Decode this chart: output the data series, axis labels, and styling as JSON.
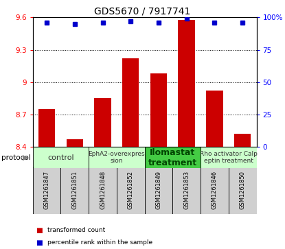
{
  "title": "GDS5670 / 7917741",
  "samples": [
    "GSM1261847",
    "GSM1261851",
    "GSM1261848",
    "GSM1261852",
    "GSM1261849",
    "GSM1261853",
    "GSM1261846",
    "GSM1261850"
  ],
  "bar_values": [
    8.75,
    8.47,
    8.85,
    9.22,
    9.08,
    9.58,
    8.92,
    8.52
  ],
  "percentile_values": [
    96,
    95,
    96,
    97,
    96,
    99,
    96,
    96
  ],
  "ylim_left": [
    8.4,
    9.6
  ],
  "ylim_right": [
    0,
    100
  ],
  "yticks_left": [
    8.4,
    8.7,
    9.0,
    9.3,
    9.6
  ],
  "yticks_right": [
    0,
    25,
    50,
    75,
    100
  ],
  "ytick_labels_left": [
    "8.4",
    "8.7",
    "9",
    "9.3",
    "9.6"
  ],
  "ytick_labels_right": [
    "0",
    "25",
    "50",
    "75",
    "100%"
  ],
  "bar_color": "#cc0000",
  "dot_color": "#0000cc",
  "bar_bottom": 8.4,
  "grid_lines": [
    8.7,
    9.0,
    9.3
  ],
  "protocols": [
    {
      "label": "control",
      "start": 0,
      "end": 2,
      "color": "#ccffcc",
      "text_color": "#333333",
      "bold": false,
      "fontsize": 8
    },
    {
      "label": "EphA2-overexpres\nsion",
      "start": 2,
      "end": 4,
      "color": "#ccffcc",
      "text_color": "#333333",
      "bold": false,
      "fontsize": 6.5
    },
    {
      "label": "Ilomastat\ntreatment",
      "start": 4,
      "end": 6,
      "color": "#44cc44",
      "text_color": "#004400",
      "bold": true,
      "fontsize": 9
    },
    {
      "label": "Rho activator Calp\neptin treatment",
      "start": 6,
      "end": 8,
      "color": "#ccffcc",
      "text_color": "#333333",
      "bold": false,
      "fontsize": 6.5
    }
  ],
  "protocol_label": "protocol",
  "legend_items": [
    {
      "label": "transformed count",
      "color": "#cc0000"
    },
    {
      "label": "percentile rank within the sample",
      "color": "#0000cc"
    }
  ],
  "bg_color": "#ffffff",
  "sample_bg_color": "#d0d0d0"
}
